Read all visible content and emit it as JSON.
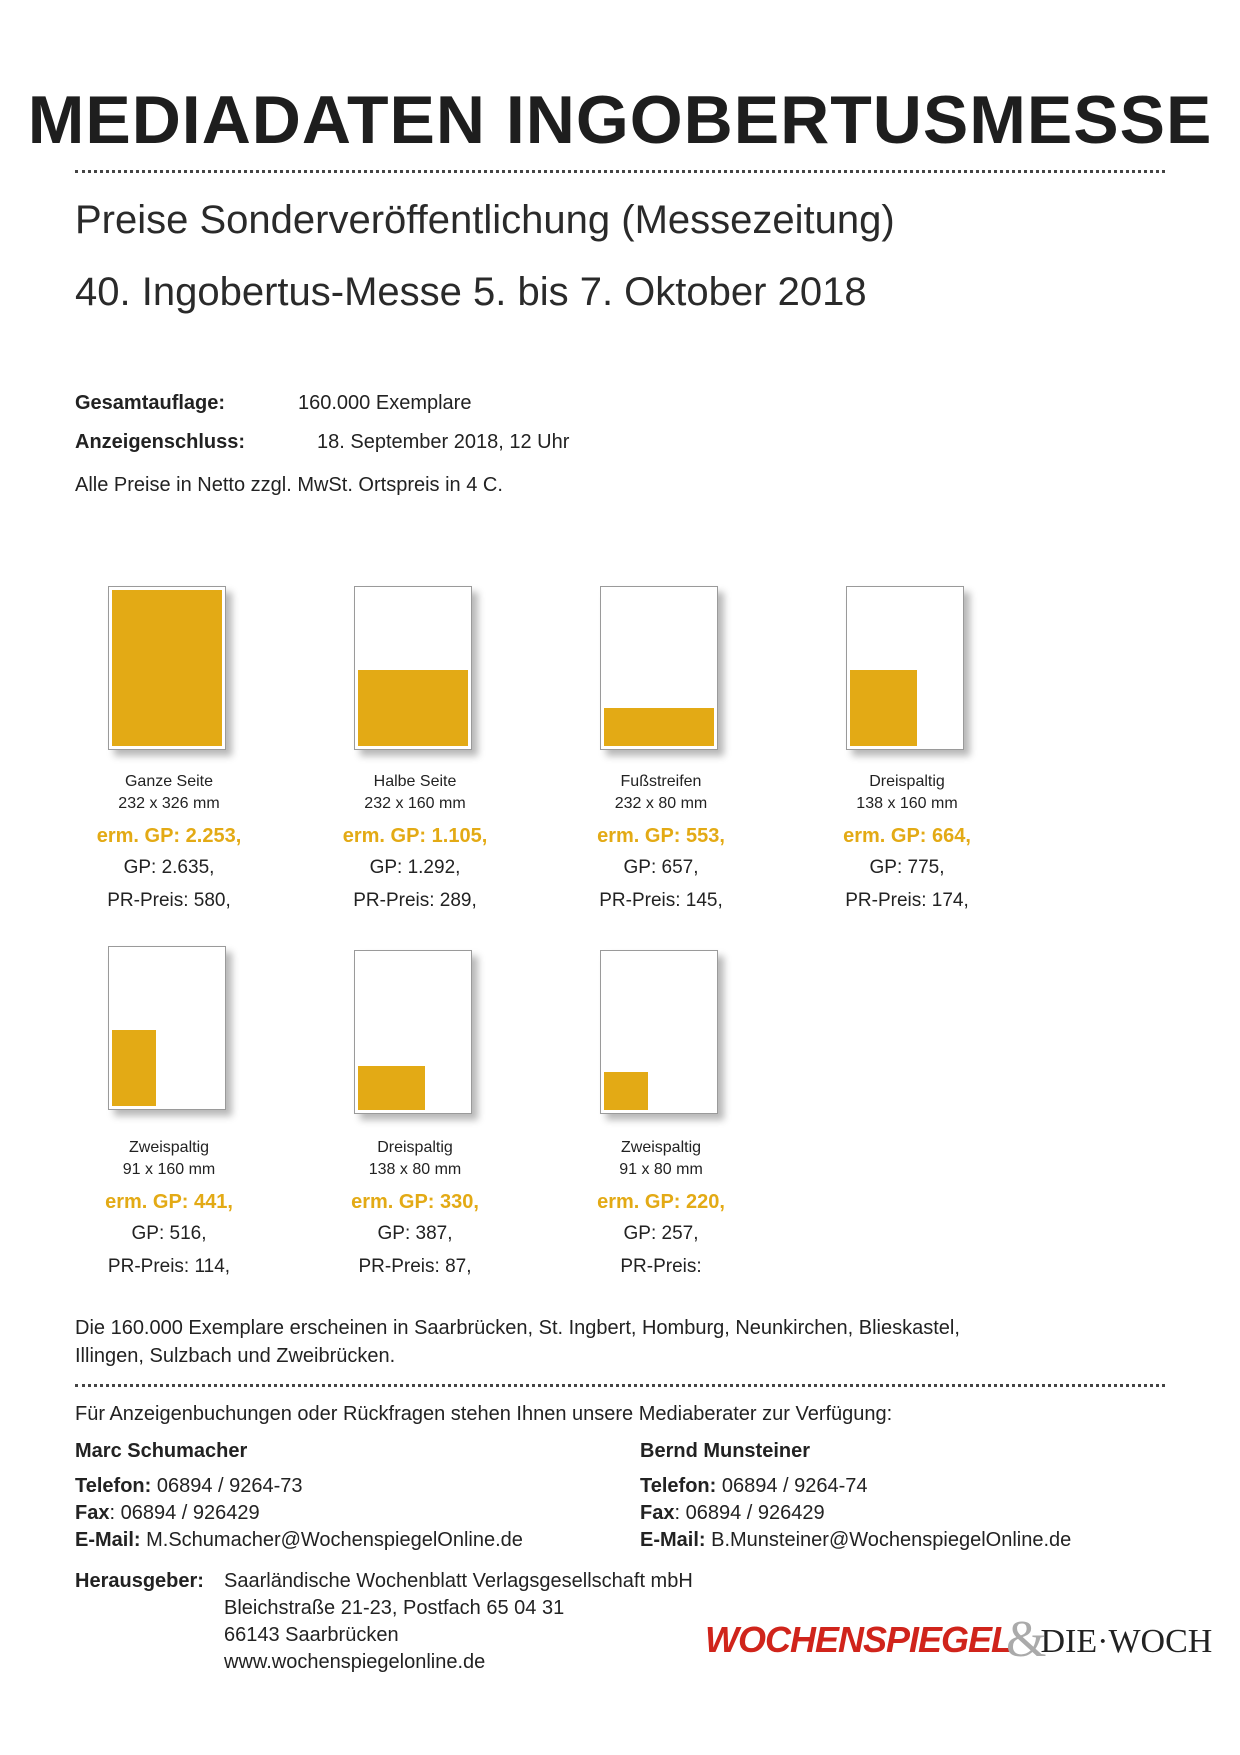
{
  "header": {
    "title": "MEDIADATEN INGOBERTUSMESSE",
    "subtitle_1": "Preise Sonderveröffentlichung (Messezeitung)",
    "subtitle_2": "40. Ingobertus-Messe 5. bis 7. Oktober 2018"
  },
  "info": {
    "auflage_label": "Gesamtauflage:",
    "auflage_value": "160.000 Exemplare",
    "schluss_label": "Anzeigenschluss:",
    "schluss_value": "18. September 2018, 12 Uhr",
    "note": "Alle Preise in Netto zzgl. MwSt. Ortspreis in 4 C."
  },
  "formats": [
    {
      "name": "Ganze Seite",
      "size": "232 x 326 mm",
      "erm": "erm. GP: 2.253,",
      "gp": "GP: 2.635,",
      "pr": "PR-Preis: 580,"
    },
    {
      "name": "Halbe Seite",
      "size": "232 x 160 mm",
      "erm": "erm. GP: 1.105,",
      "gp": "GP: 1.292,",
      "pr": "PR-Preis: 289,"
    },
    {
      "name": "Fußstreifen",
      "size": "232 x 80 mm",
      "erm": "erm. GP: 553,",
      "gp": "GP: 657,",
      "pr": "PR-Preis: 145,"
    },
    {
      "name": "Dreispaltig",
      "size": "138 x 160 mm",
      "erm": "erm. GP: 664,",
      "gp": "GP: 775,",
      "pr": "PR-Preis: 174,"
    },
    {
      "name": "Zweispaltig",
      "size": "91 x 160 mm",
      "erm": "erm. GP: 441,",
      "gp": "GP: 516,",
      "pr": "PR-Preis: 114,"
    },
    {
      "name": "Dreispaltig",
      "size": "138 x 80 mm",
      "erm": "erm. GP: 330,",
      "gp": "GP: 387,",
      "pr": "PR-Preis: 87,"
    },
    {
      "name": "Zweispaltig",
      "size": "91 x 80 mm",
      "erm": "erm. GP: 220,",
      "gp": "GP: 257,",
      "pr": "PR-Preis:"
    }
  ],
  "distribution": {
    "line_1": "Die 160.000 Exemplare erscheinen in Saarbrücken, St. Ingbert, Homburg, Neunkirchen, Blieskastel,",
    "line_2": "Illingen, Sulzbach und Zweibrücken."
  },
  "contact_intro": "Für Anzeigenbuchungen oder Rückfragen stehen Ihnen unsere Mediaberater zur Verfügung:",
  "contacts": [
    {
      "name": "Marc Schumacher",
      "tel_label": "Telefon:",
      "tel": " 06894 / 9264-73",
      "fax_label": "Fax",
      "fax": ": 06894 / 926429",
      "mail_label": "E-Mail:",
      "mail": " M.Schumacher@WochenspiegelOnline.de"
    },
    {
      "name": "Bernd Munsteiner",
      "tel_label": "Telefon:",
      "tel": " 06894 / 9264-74",
      "fax_label": "Fax",
      "fax": ": 06894 / 926429",
      "mail_label": "E-Mail:",
      "mail": " B.Munsteiner@WochenspiegelOnline.de"
    }
  ],
  "publisher": {
    "label": "Herausgeber:",
    "line_1": "Saarländische Wochenblatt Verlagsgesellschaft mbH",
    "line_2": "Bleichstraße 21-23, Postfach 65 04 31",
    "line_3": "66143 Saarbrücken",
    "line_4": "www.wochenspiegelonline.de"
  },
  "logo": {
    "part_1": "WOCHENSPIEGEL",
    "amp": "&",
    "part_2": "DIE·WOCH"
  },
  "colors": {
    "accent": "#e3aa15",
    "logo_red": "#d0241b"
  }
}
